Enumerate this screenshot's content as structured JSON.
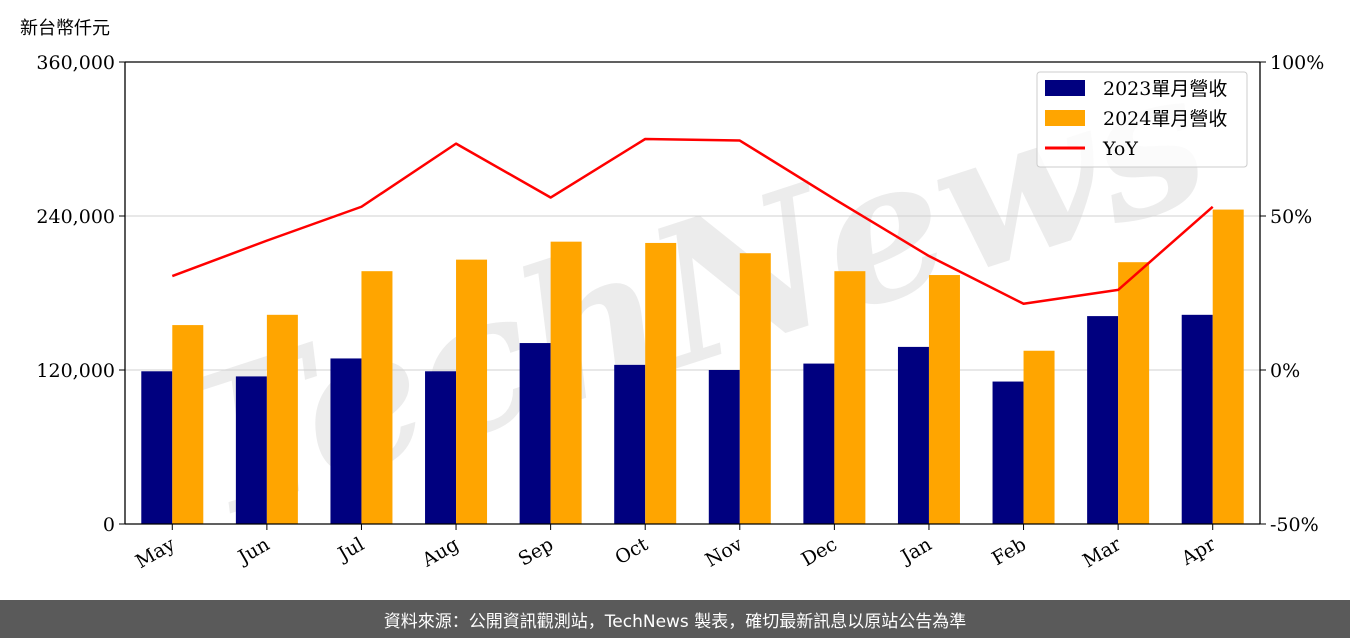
{
  "unit_label": "新台幣仟元",
  "footer_text": "資料來源：公開資訊觀測站，TechNews 製表，確切最新訊息以原站公告為準",
  "watermark_text": "TechNews",
  "colors": {
    "series_2023": "#00007f",
    "series_2024": "#ffa500",
    "yoy": "#ff0000",
    "grid": "#d0d0d0",
    "watermark": "rgba(200,200,200,0.35)",
    "watermark_accent": "rgba(245,170,170,0.30)"
  },
  "chart_data": {
    "type": "bar",
    "categories": [
      "May",
      "Jun",
      "Jul",
      "Aug",
      "Sep",
      "Oct",
      "Nov",
      "Dec",
      "Jan",
      "Feb",
      "Mar",
      "Apr"
    ],
    "series": [
      {
        "name": "2023單月營收",
        "type": "bar",
        "axis": "left",
        "values": [
          119000,
          115000,
          129000,
          119000,
          141000,
          124000,
          120000,
          125000,
          138000,
          111000,
          162000,
          163000
        ]
      },
      {
        "name": "2024單月營收",
        "type": "bar",
        "axis": "left",
        "values": [
          155000,
          163000,
          197000,
          206000,
          220000,
          219000,
          211000,
          197000,
          194000,
          135000,
          204000,
          245000
        ]
      },
      {
        "name": "YoY",
        "type": "line",
        "axis": "right",
        "values": [
          30.5,
          42,
          53,
          73.5,
          56,
          75,
          74.5,
          55.5,
          37,
          21.5,
          26,
          53
        ]
      }
    ],
    "ylim_left": [
      0,
      360000
    ],
    "yticks_left": [
      "0",
      "120,000",
      "240,000",
      "360,000"
    ],
    "ylim_right": [
      -50,
      100
    ],
    "yticks_right": [
      "-50%",
      "0%",
      "50%",
      "100%"
    ],
    "grid": "horizontal",
    "legend": "top-right"
  }
}
